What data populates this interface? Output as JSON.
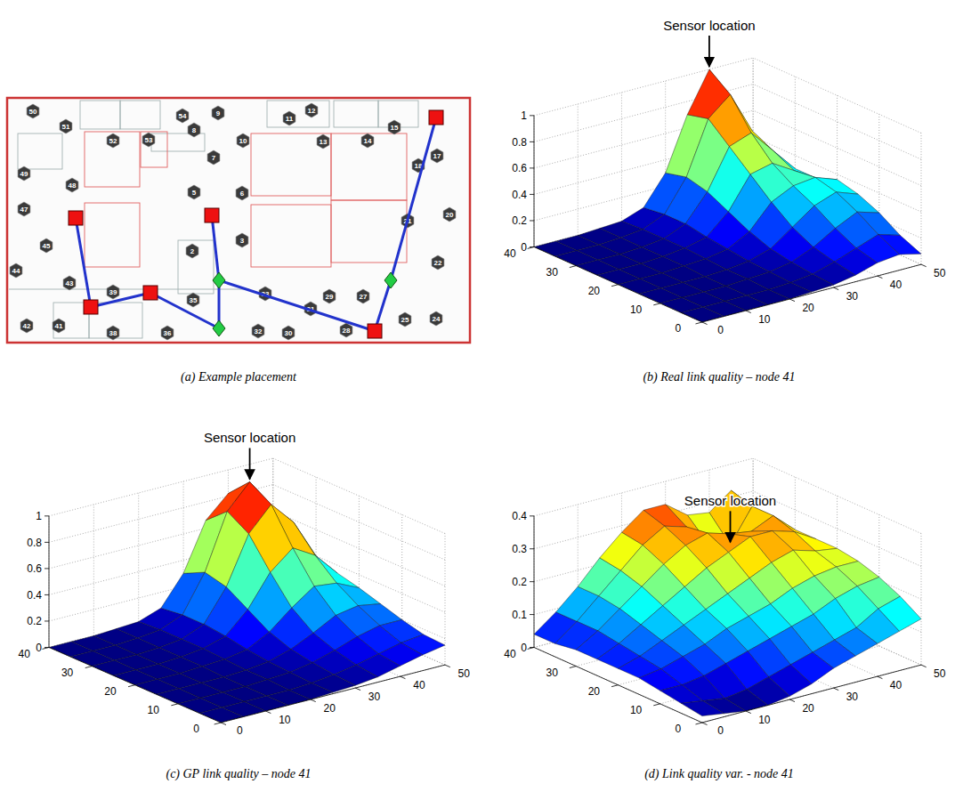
{
  "chart_data": [
    {
      "type": "placement_map",
      "title": "(a) Example placement",
      "nodes": [
        50,
        51,
        52,
        53,
        54,
        9,
        8,
        10,
        11,
        12,
        13,
        14,
        15,
        17,
        18,
        7,
        5,
        6,
        3,
        2,
        21,
        20,
        22,
        49,
        48,
        47,
        45,
        44,
        43,
        39,
        35,
        33,
        31,
        29,
        27,
        30,
        32,
        28,
        25,
        24,
        36,
        38,
        41,
        42
      ]
    },
    {
      "type": "surface",
      "title": "(b) Real link quality – node 41",
      "x": [
        0,
        5,
        10,
        15,
        20,
        25,
        30,
        35,
        40,
        45,
        50
      ],
      "y": [
        0,
        5,
        10,
        15,
        20,
        25,
        30,
        35,
        40
      ],
      "z": [
        [
          0,
          0,
          0,
          0,
          0,
          0.01,
          0.02,
          0.05,
          0.1,
          0.12,
          0.08
        ],
        [
          0,
          0,
          0,
          0,
          0,
          0.01,
          0.03,
          0.08,
          0.14,
          0.2,
          0.15
        ],
        [
          0,
          0,
          0,
          0,
          0.01,
          0.02,
          0.05,
          0.12,
          0.22,
          0.3,
          0.25
        ],
        [
          0,
          0,
          0,
          0,
          0.01,
          0.03,
          0.08,
          0.2,
          0.32,
          0.38,
          0.32
        ],
        [
          0,
          0,
          0,
          0.01,
          0.02,
          0.05,
          0.14,
          0.32,
          0.4,
          0.42,
          0.36
        ],
        [
          0,
          0,
          0,
          0.01,
          0.03,
          0.07,
          0.22,
          0.46,
          0.5,
          0.4,
          0.3
        ],
        [
          0,
          0,
          0,
          0.01,
          0.03,
          0.1,
          0.3,
          0.6,
          0.66,
          0.48,
          0.3
        ],
        [
          0,
          0,
          0,
          0.01,
          0.03,
          0.1,
          0.34,
          0.74,
          0.88,
          0.56,
          0.28
        ],
        [
          0,
          0,
          0,
          0.01,
          0.02,
          0.08,
          0.3,
          0.7,
          1.0,
          0.6,
          0.25
        ]
      ],
      "xlim": [
        0,
        50
      ],
      "ylim": [
        0,
        40
      ],
      "zlim": [
        0,
        1
      ],
      "xticks": [
        0,
        10,
        20,
        30,
        40,
        50
      ],
      "yticks": [
        0,
        10,
        20,
        30,
        40
      ],
      "zticks": [
        0,
        0.2,
        0.4,
        0.6,
        0.8,
        1
      ],
      "grid": true,
      "annotation": {
        "text": "Sensor location",
        "x": 40,
        "y": 40
      }
    },
    {
      "type": "surface",
      "title": "(c) GP link quality – node 41",
      "x": [
        0,
        5,
        10,
        15,
        20,
        25,
        30,
        35,
        40,
        45,
        50
      ],
      "y": [
        0,
        5,
        10,
        15,
        20,
        25,
        30,
        35,
        40
      ],
      "z": [
        [
          0,
          0,
          0,
          0,
          0,
          0.01,
          0.02,
          0.04,
          0.08,
          0.12,
          0.15
        ],
        [
          0,
          0,
          0,
          0,
          0,
          0.01,
          0.03,
          0.06,
          0.1,
          0.14,
          0.16
        ],
        [
          0,
          0,
          0,
          0,
          0.01,
          0.02,
          0.05,
          0.1,
          0.16,
          0.2,
          0.2
        ],
        [
          0,
          0,
          0,
          0,
          0.01,
          0.03,
          0.08,
          0.16,
          0.25,
          0.28,
          0.25
        ],
        [
          0,
          0,
          0,
          0.01,
          0.02,
          0.05,
          0.14,
          0.28,
          0.4,
          0.38,
          0.3
        ],
        [
          0,
          0,
          0,
          0.01,
          0.03,
          0.08,
          0.24,
          0.48,
          0.62,
          0.52,
          0.34
        ],
        [
          0,
          0,
          0,
          0.01,
          0.03,
          0.1,
          0.34,
          0.7,
          0.88,
          0.7,
          0.4
        ],
        [
          0,
          0,
          0,
          0.01,
          0.03,
          0.1,
          0.38,
          0.8,
          0.98,
          0.75,
          0.38
        ],
        [
          0,
          0,
          0,
          0.01,
          0.02,
          0.08,
          0.3,
          0.66,
          0.82,
          0.6,
          0.3
        ]
      ],
      "xlim": [
        0,
        50
      ],
      "ylim": [
        0,
        40
      ],
      "zlim": [
        0,
        1
      ],
      "xticks": [
        0,
        10,
        20,
        30,
        40,
        50
      ],
      "yticks": [
        0,
        10,
        20,
        30,
        40
      ],
      "zticks": [
        0,
        0.2,
        0.4,
        0.6,
        0.8,
        1
      ],
      "grid": true,
      "annotation": {
        "text": "Sensor location",
        "x": 40,
        "y": 35
      }
    },
    {
      "type": "surface",
      "title": "(d) Link quality var. - node 41",
      "x": [
        0,
        5,
        10,
        15,
        20,
        25,
        30,
        35,
        40,
        45,
        50
      ],
      "y": [
        0,
        5,
        10,
        15,
        20,
        25,
        30,
        35,
        40
      ],
      "z": [
        [
          0.02,
          0.01,
          0.0,
          0.0,
          0.01,
          0.03,
          0.06,
          0.08,
          0.1,
          0.12,
          0.14
        ],
        [
          0.03,
          0.02,
          0.01,
          0.02,
          0.04,
          0.06,
          0.08,
          0.1,
          0.12,
          0.16,
          0.18
        ],
        [
          0.04,
          0.04,
          0.05,
          0.07,
          0.09,
          0.11,
          0.13,
          0.15,
          0.18,
          0.2,
          0.21
        ],
        [
          0.05,
          0.06,
          0.08,
          0.1,
          0.13,
          0.15,
          0.17,
          0.2,
          0.22,
          0.23,
          0.23
        ],
        [
          0.05,
          0.07,
          0.1,
          0.13,
          0.16,
          0.19,
          0.22,
          0.25,
          0.27,
          0.25,
          0.24
        ],
        [
          0.05,
          0.08,
          0.12,
          0.16,
          0.2,
          0.24,
          0.27,
          0.3,
          0.3,
          0.28,
          0.24
        ],
        [
          0.05,
          0.09,
          0.14,
          0.19,
          0.24,
          0.28,
          0.3,
          0.28,
          0.27,
          0.3,
          0.24
        ],
        [
          0.04,
          0.09,
          0.15,
          0.21,
          0.27,
          0.31,
          0.29,
          0.22,
          0.2,
          0.3,
          0.23
        ],
        [
          0.04,
          0.09,
          0.15,
          0.22,
          0.28,
          0.33,
          0.33,
          0.28,
          0.27,
          0.32,
          0.22
        ]
      ],
      "xlim": [
        0,
        50
      ],
      "ylim": [
        0,
        40
      ],
      "zlim": [
        0,
        0.4
      ],
      "xticks": [
        0,
        10,
        20,
        30,
        40,
        50
      ],
      "yticks": [
        0,
        10,
        20,
        30,
        40
      ],
      "zticks": [
        0,
        0.1,
        0.2,
        0.3,
        0.4
      ],
      "grid": true,
      "annotation": {
        "text": "Sensor location",
        "x": 40,
        "y": 35
      }
    }
  ]
}
